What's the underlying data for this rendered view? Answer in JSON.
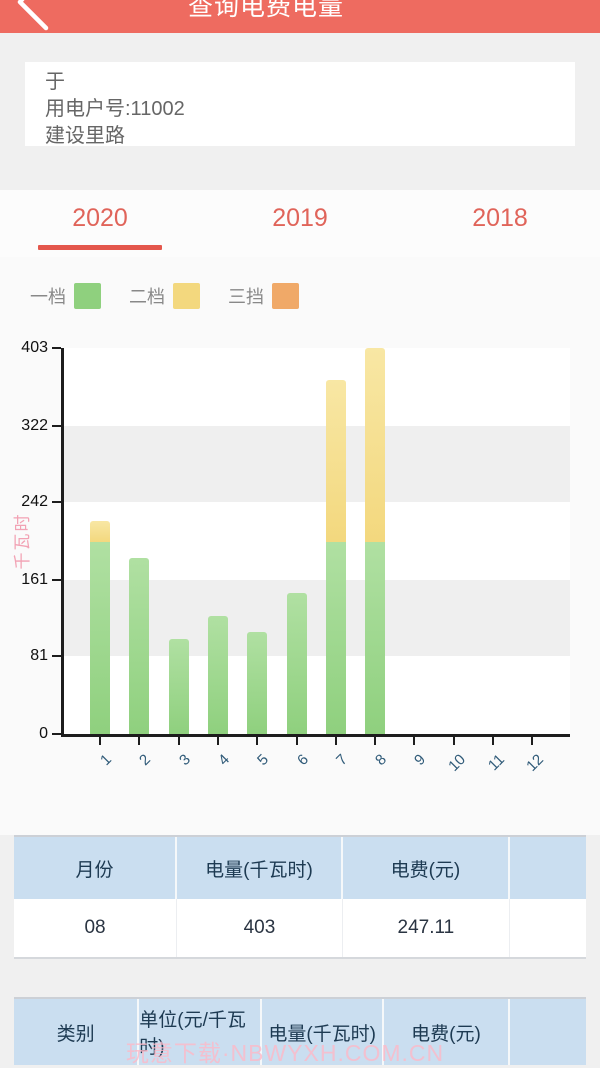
{
  "header": {
    "title": "查询电费电量"
  },
  "account_card": {
    "name": "于",
    "account": "用电户号:11002",
    "address": "建设里路"
  },
  "tabs": [
    {
      "label": "2020",
      "active": true
    },
    {
      "label": "2019",
      "active": false
    },
    {
      "label": "2018",
      "active": false
    }
  ],
  "chart_data": {
    "type": "bar",
    "stacked": true,
    "ylabel": "千瓦时",
    "xlabel": "",
    "ylim": [
      0,
      403
    ],
    "y_ticks": [
      0,
      81,
      161,
      242,
      322,
      403
    ],
    "grid": "alternating-horizontal-bands",
    "legend_position": "top-left",
    "categories": [
      "1",
      "2",
      "3",
      "4",
      "5",
      "6",
      "7",
      "8",
      "9",
      "10",
      "11",
      "12"
    ],
    "series": [
      {
        "name": "一档",
        "color": "#8fd07e",
        "color_light": "#b0e0a2",
        "values": [
          200,
          184,
          99,
          123,
          107,
          147,
          200,
          200,
          0,
          0,
          0,
          0
        ]
      },
      {
        "name": "二档",
        "color": "#f3d87e",
        "color_light": "#f8e7a4",
        "values": [
          22,
          0,
          0,
          0,
          0,
          0,
          170,
          203,
          0,
          0,
          0,
          0
        ]
      },
      {
        "name": "三挡",
        "color": "#f0a968",
        "color_light": "#f5c596",
        "values": [
          0,
          0,
          0,
          0,
          0,
          0,
          0,
          0,
          0,
          0,
          0,
          0
        ]
      }
    ],
    "totals_by_month": [
      222,
      184,
      99,
      123,
      107,
      147,
      370,
      403,
      0,
      0,
      0,
      0
    ]
  },
  "monthly_table": {
    "headers": [
      "月份",
      "电量(千瓦时)",
      "电费(元)"
    ],
    "rows": [
      [
        "08",
        "403",
        "247.11"
      ]
    ]
  },
  "tier_table": {
    "headers": [
      "类别",
      "单位(元/千瓦时)",
      "电量(千瓦时)",
      "电费(元)"
    ],
    "rows": []
  },
  "watermark": {
    "text": "玩意下载·NBWYXH.COM.CN"
  },
  "colors": {
    "appbar": "#ee6b60",
    "tab_text": "#e0645a",
    "tab_underline": "#e4574c",
    "table_header_bg": "#cadef0",
    "y_title": "#f2a2b4",
    "x_label": "#2f5a78"
  }
}
